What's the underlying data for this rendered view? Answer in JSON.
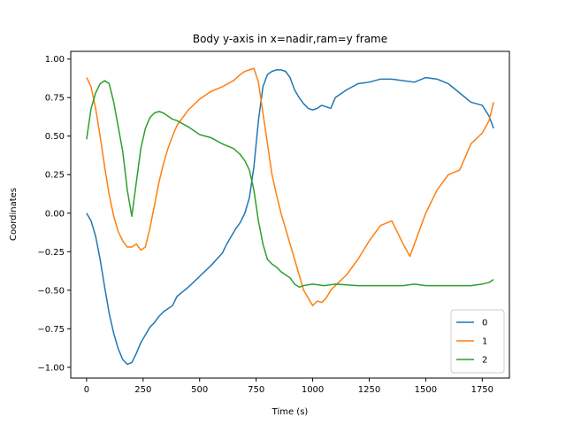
{
  "chart_data": {
    "type": "line",
    "title": "Body y-axis in x=nadir,ram=y frame",
    "xlabel": "Time (s)",
    "ylabel": "Coordinates",
    "xlim": [
      -70,
      1870
    ],
    "ylim": [
      -1.07,
      1.05
    ],
    "xticks": [
      0,
      250,
      500,
      750,
      1000,
      1250,
      1500,
      1750
    ],
    "yticks": [
      -1.0,
      -0.75,
      -0.5,
      -0.25,
      0.0,
      0.25,
      0.5,
      0.75,
      1.0
    ],
    "xtick_labels": [
      "0",
      "250",
      "500",
      "750",
      "1000",
      "1250",
      "1500",
      "1750"
    ],
    "ytick_labels": [
      "−1.00",
      "−0.75",
      "−0.50",
      "−0.25",
      "0.00",
      "0.25",
      "0.50",
      "0.75",
      "1.00"
    ],
    "grid": false,
    "legend": "lower-right",
    "series": [
      {
        "name": "0",
        "color": "#1f77b4",
        "x": [
          0,
          20,
          40,
          60,
          80,
          100,
          120,
          140,
          160,
          180,
          200,
          220,
          240,
          260,
          280,
          300,
          320,
          340,
          360,
          380,
          400,
          450,
          500,
          550,
          600,
          620,
          640,
          660,
          680,
          700,
          720,
          740,
          760,
          780,
          800,
          820,
          840,
          860,
          880,
          900,
          920,
          940,
          960,
          980,
          1000,
          1020,
          1040,
          1060,
          1080,
          1100,
          1150,
          1200,
          1250,
          1300,
          1350,
          1400,
          1450,
          1500,
          1550,
          1600,
          1650,
          1700,
          1750,
          1780,
          1800
        ],
        "y": [
          0.0,
          -0.05,
          -0.15,
          -0.3,
          -0.48,
          -0.65,
          -0.78,
          -0.88,
          -0.95,
          -0.98,
          -0.97,
          -0.91,
          -0.84,
          -0.79,
          -0.74,
          -0.71,
          -0.67,
          -0.64,
          -0.62,
          -0.6,
          -0.54,
          -0.48,
          -0.41,
          -0.34,
          -0.26,
          -0.2,
          -0.15,
          -0.1,
          -0.06,
          0.0,
          0.1,
          0.3,
          0.6,
          0.82,
          0.9,
          0.92,
          0.93,
          0.93,
          0.92,
          0.88,
          0.8,
          0.75,
          0.71,
          0.68,
          0.67,
          0.68,
          0.7,
          0.69,
          0.68,
          0.75,
          0.8,
          0.84,
          0.85,
          0.87,
          0.87,
          0.86,
          0.85,
          0.88,
          0.87,
          0.84,
          0.78,
          0.72,
          0.7,
          0.63,
          0.55
        ]
      },
      {
        "name": "1",
        "color": "#ff7f0e",
        "x": [
          0,
          20,
          40,
          60,
          80,
          100,
          120,
          140,
          160,
          180,
          200,
          220,
          240,
          260,
          280,
          300,
          320,
          340,
          360,
          380,
          400,
          450,
          500,
          550,
          600,
          650,
          680,
          700,
          720,
          740,
          760,
          780,
          800,
          820,
          840,
          860,
          880,
          900,
          920,
          940,
          960,
          980,
          1000,
          1020,
          1040,
          1060,
          1080,
          1100,
          1150,
          1200,
          1250,
          1300,
          1350,
          1400,
          1430,
          1450,
          1500,
          1550,
          1600,
          1650,
          1700,
          1750,
          1780,
          1800
        ],
        "y": [
          0.88,
          0.82,
          0.68,
          0.5,
          0.3,
          0.12,
          -0.02,
          -0.12,
          -0.18,
          -0.22,
          -0.22,
          -0.2,
          -0.24,
          -0.22,
          -0.1,
          0.05,
          0.2,
          0.32,
          0.42,
          0.5,
          0.57,
          0.67,
          0.74,
          0.79,
          0.82,
          0.86,
          0.9,
          0.92,
          0.93,
          0.94,
          0.85,
          0.65,
          0.45,
          0.25,
          0.12,
          0.0,
          -0.1,
          -0.2,
          -0.3,
          -0.4,
          -0.5,
          -0.55,
          -0.6,
          -0.57,
          -0.58,
          -0.55,
          -0.5,
          -0.47,
          -0.4,
          -0.3,
          -0.18,
          -0.08,
          -0.05,
          -0.2,
          -0.28,
          -0.2,
          0.0,
          0.15,
          0.25,
          0.28,
          0.45,
          0.52,
          0.6,
          0.72
        ]
      },
      {
        "name": "2",
        "color": "#2ca02c",
        "x": [
          0,
          20,
          40,
          60,
          80,
          100,
          120,
          140,
          160,
          180,
          200,
          220,
          240,
          260,
          280,
          300,
          320,
          340,
          360,
          380,
          400,
          450,
          500,
          550,
          600,
          650,
          680,
          700,
          720,
          740,
          760,
          780,
          800,
          820,
          840,
          860,
          880,
          900,
          920,
          940,
          960,
          1000,
          1050,
          1100,
          1200,
          1300,
          1400,
          1450,
          1500,
          1550,
          1600,
          1650,
          1700,
          1750,
          1780,
          1800
        ],
        "y": [
          0.48,
          0.68,
          0.78,
          0.84,
          0.86,
          0.84,
          0.72,
          0.56,
          0.4,
          0.15,
          -0.02,
          0.2,
          0.42,
          0.55,
          0.62,
          0.65,
          0.66,
          0.65,
          0.63,
          0.61,
          0.6,
          0.56,
          0.51,
          0.49,
          0.45,
          0.42,
          0.38,
          0.34,
          0.28,
          0.15,
          -0.05,
          -0.2,
          -0.3,
          -0.33,
          -0.35,
          -0.38,
          -0.4,
          -0.42,
          -0.46,
          -0.48,
          -0.47,
          -0.46,
          -0.47,
          -0.46,
          -0.47,
          -0.47,
          -0.47,
          -0.46,
          -0.47,
          -0.47,
          -0.47,
          -0.47,
          -0.47,
          -0.46,
          -0.45,
          -0.43
        ]
      }
    ]
  }
}
